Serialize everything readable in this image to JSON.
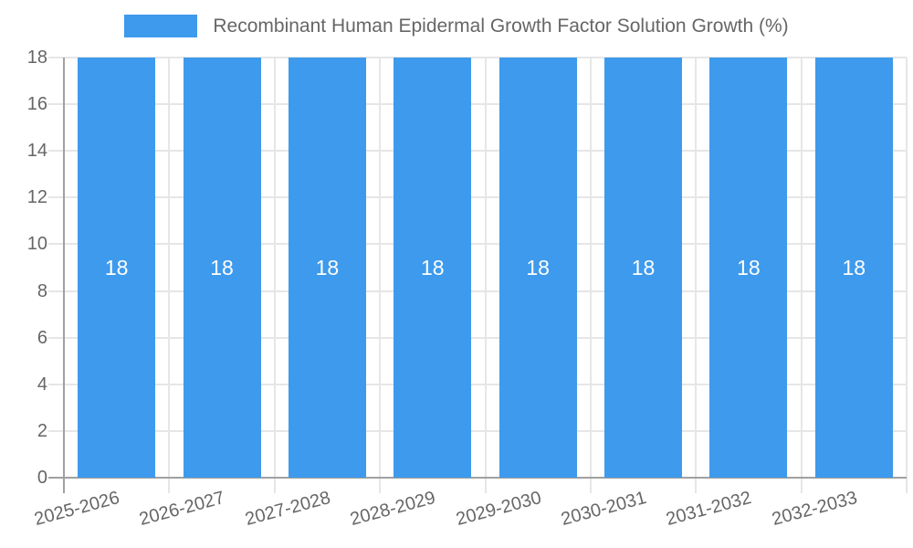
{
  "chart_data": {
    "type": "bar",
    "title": "Recombinant Human Epidermal Growth Factor Solution Growth (%)",
    "categories": [
      "2025-2026",
      "2026-2027",
      "2027-2028",
      "2028-2029",
      "2029-2030",
      "2030-2031",
      "2031-2032",
      "2032-2033"
    ],
    "series": [
      {
        "name": "Recombinant Human Epidermal Growth Factor Solution Growth (%)",
        "values": [
          18,
          18,
          18,
          18,
          18,
          18,
          18,
          18
        ]
      }
    ],
    "xlabel": "",
    "ylabel": "",
    "ylim": [
      0,
      18
    ],
    "ytick_step": 2,
    "ytick_labels": [
      "0",
      "2",
      "4",
      "6",
      "8",
      "10",
      "12",
      "14",
      "16",
      "18"
    ],
    "grid": true,
    "legend_position": "top-center",
    "bar_label_position": "inside-middle",
    "x_label_rotation_deg": -15,
    "colors": {
      "bar": "#3E9AEC",
      "bar_label": "#FFFFFF",
      "grid_line": "#E6E6E6",
      "axis_line": "#A0A0A0",
      "text": "#666666",
      "background": "#FFFFFF"
    }
  }
}
